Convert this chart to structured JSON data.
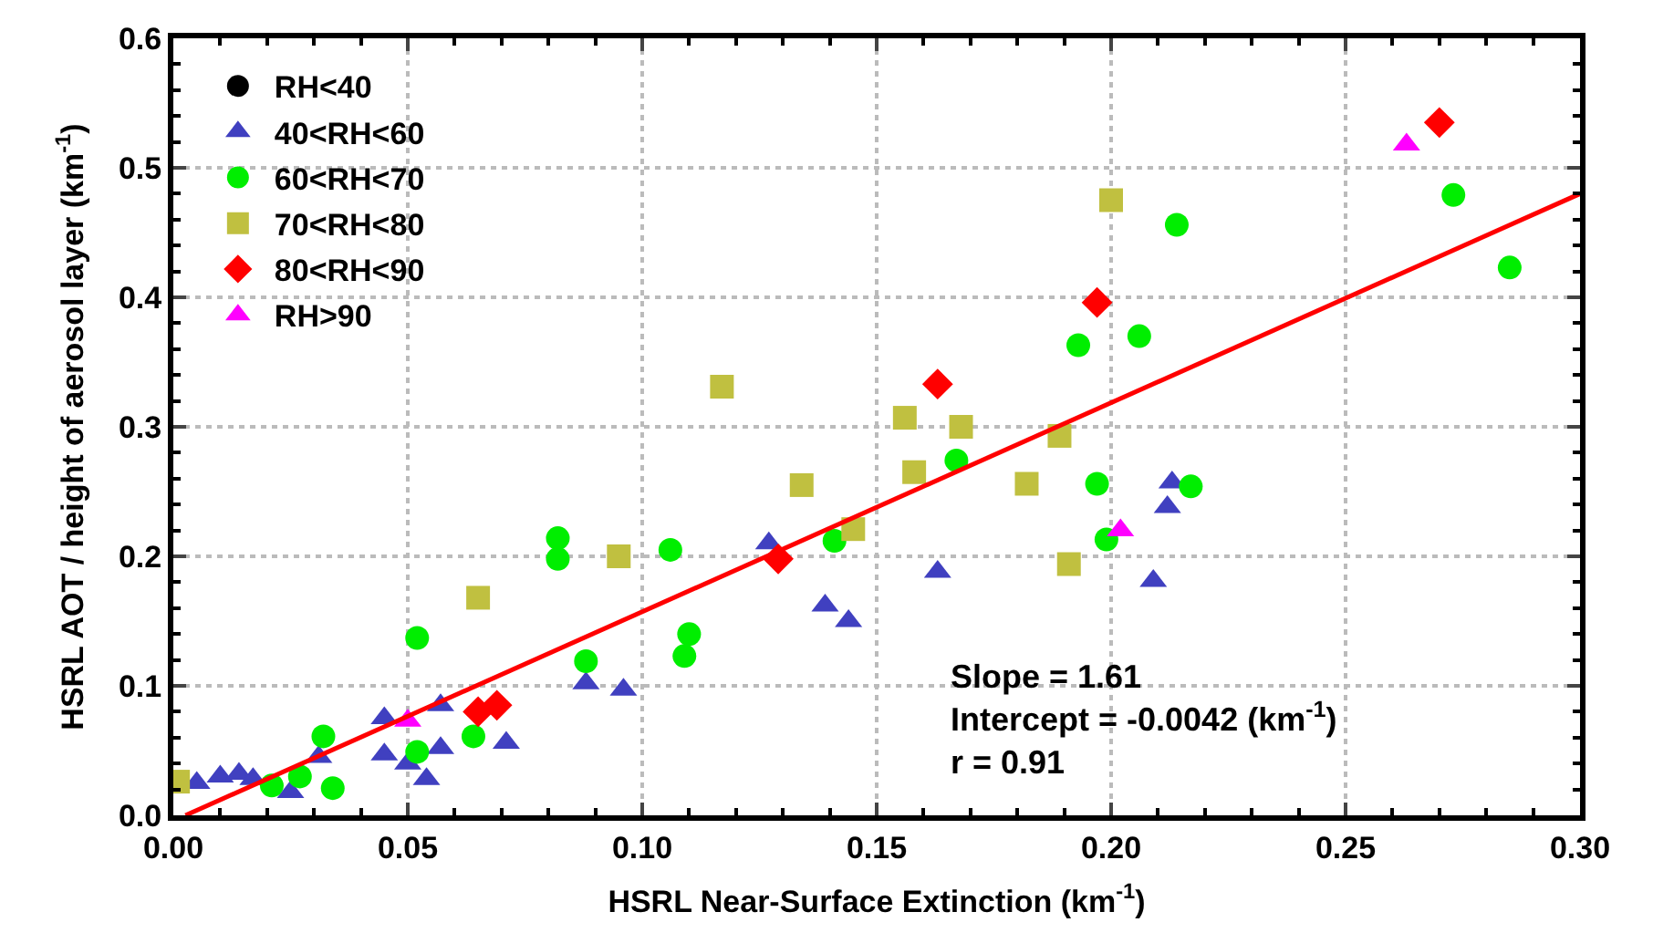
{
  "chart_data": {
    "type": "scatter",
    "xlabel": "HSRL Near-Surface Extinction (km$^{-1}$)",
    "ylabel": "HSRL AOT / height of aerosol layer (km$^{-1}$)",
    "xlim": [
      0,
      0.3
    ],
    "xticks": [
      {
        "value": 0,
        "label": "0.00"
      },
      {
        "value": 0.05,
        "label": "0.05"
      },
      {
        "value": 0.1,
        "label": "0.10"
      },
      {
        "value": 0.15,
        "label": "0.15"
      },
      {
        "value": 0.2,
        "label": "0.20"
      },
      {
        "value": 0.25,
        "label": "0.25"
      },
      {
        "value": 0.3,
        "label": "0.30"
      }
    ],
    "ylim": [
      0,
      0.6
    ],
    "yticks": [
      {
        "value": 0,
        "label": "0.0"
      },
      0.1,
      0.2,
      0.3,
      0.4,
      0.5,
      0.6
    ],
    "grid": true,
    "legend": "top left",
    "series": [
      {
        "name": "RH<40",
        "color": "#000000",
        "marker": "circle"
      },
      {
        "name": "40<RH<60",
        "color": "#4040c0",
        "marker": "triangle",
        "x": [
          0.127,
          0.139,
          0.144,
          0.088,
          0.096,
          0.071,
          0.057,
          0.057,
          0.054,
          0.045,
          0.045,
          0.05,
          0.031,
          0.005,
          0.01,
          0.014,
          0.017,
          0.025,
          0.163,
          0.209,
          0.213,
          0.212
        ],
        "values": [
          0.21,
          0.162,
          0.15,
          0.102,
          0.097,
          0.056,
          0.085,
          0.052,
          0.028,
          0.075,
          0.047,
          0.04,
          0.045,
          0.025,
          0.03,
          0.032,
          0.028,
          0.018,
          0.188,
          0.181,
          0.257,
          0.238
        ]
      },
      {
        "name": "60<RH<70",
        "color": "#00ee00",
        "marker": "circle",
        "x": [
          0.082,
          0.082,
          0.106,
          0.11,
          0.109,
          0.088,
          0.052,
          0.141,
          0.064,
          0.052,
          0.032,
          0.034,
          0.027,
          0.021,
          0.167,
          0.193,
          0.206,
          0.214,
          0.197,
          0.199,
          0.217,
          0.273,
          0.285
        ],
        "values": [
          0.214,
          0.198,
          0.205,
          0.14,
          0.123,
          0.119,
          0.137,
          0.212,
          0.061,
          0.049,
          0.061,
          0.021,
          0.03,
          0.023,
          0.274,
          0.363,
          0.37,
          0.456,
          0.256,
          0.213,
          0.254,
          0.479,
          0.423
        ]
      },
      {
        "name": "70<RH<80",
        "color": "#c0c040",
        "marker": "square",
        "x": [
          0.117,
          0.134,
          0.095,
          0.065,
          0.145,
          0.156,
          0.001,
          0.168,
          0.158,
          0.182,
          0.189,
          0.191,
          0.2
        ],
        "values": [
          0.331,
          0.255,
          0.2,
          0.168,
          0.221,
          0.307,
          0.026,
          0.3,
          0.265,
          0.256,
          0.293,
          0.194,
          0.475
        ]
      },
      {
        "name": "80<RH<90",
        "color": "#ff0000",
        "marker": "diamond",
        "x": [
          0.065,
          0.069,
          0.129,
          0.163,
          0.197,
          0.27
        ],
        "values": [
          0.08,
          0.085,
          0.198,
          0.333,
          0.396,
          0.535
        ]
      },
      {
        "name": "RH>90",
        "color": "#ff00ff",
        "marker": "triangle",
        "x": [
          0.05,
          0.202,
          0.263
        ],
        "values": [
          0.073,
          0.22,
          0.518
        ]
      },
      {
        "type": "line",
        "color": "#ff0000",
        "line_style": "solid",
        "x": [
          0.0026,
          0.3
        ],
        "values": [
          0,
          0.48
        ]
      }
    ],
    "annotations": [
      "Slope = 1.61\nIntercept = -0.0042 (km$^{-1}$)\nr = 0.91"
    ]
  }
}
